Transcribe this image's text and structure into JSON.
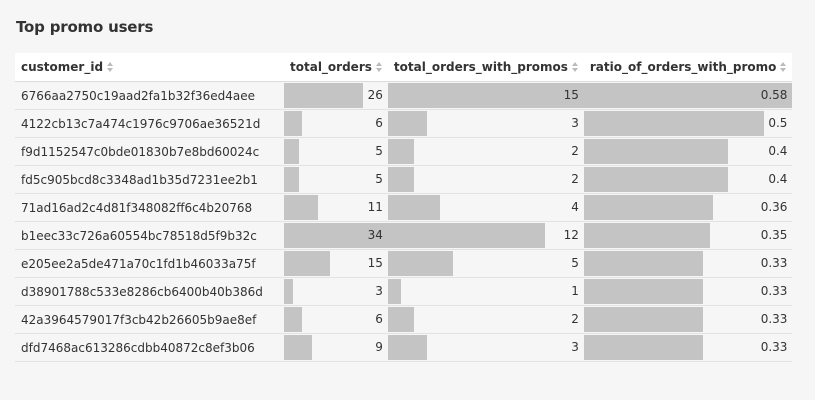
{
  "title": "Top promo users",
  "bar_color": "#c4c4c4",
  "columns": {
    "customer_id": "customer_id",
    "total_orders": "total_orders",
    "total_orders_with_promos": "total_orders_with_promos",
    "ratio_of_orders_with_promo": "ratio_of_orders_with_promo"
  },
  "rows": [
    {
      "customer_id": "6766aa2750c19aad2fa1b32f36ed4aee",
      "total_orders": 26,
      "total_orders_with_promos": 15,
      "ratio_of_orders_with_promo": "0.58"
    },
    {
      "customer_id": "4122cb13c7a474c1976c9706ae36521d",
      "total_orders": 6,
      "total_orders_with_promos": 3,
      "ratio_of_orders_with_promo": "0.5"
    },
    {
      "customer_id": "f9d1152547c0bde01830b7e8bd60024c",
      "total_orders": 5,
      "total_orders_with_promos": 2,
      "ratio_of_orders_with_promo": "0.4"
    },
    {
      "customer_id": "fd5c905bcd8c3348ad1b35d7231ee2b1",
      "total_orders": 5,
      "total_orders_with_promos": 2,
      "ratio_of_orders_with_promo": "0.4"
    },
    {
      "customer_id": "71ad16ad2c4d81f348082ff6c4b20768",
      "total_orders": 11,
      "total_orders_with_promos": 4,
      "ratio_of_orders_with_promo": "0.36"
    },
    {
      "customer_id": "b1eec33c726a60554bc78518d5f9b32c",
      "total_orders": 34,
      "total_orders_with_promos": 12,
      "ratio_of_orders_with_promo": "0.35"
    },
    {
      "customer_id": "e205ee2a5de471a70c1fd1b46033a75f",
      "total_orders": 15,
      "total_orders_with_promos": 5,
      "ratio_of_orders_with_promo": "0.33"
    },
    {
      "customer_id": "d38901788c533e8286cb6400b40b386d",
      "total_orders": 3,
      "total_orders_with_promos": 1,
      "ratio_of_orders_with_promo": "0.33"
    },
    {
      "customer_id": "42a3964579017f3cb42b26605b9ae8ef",
      "total_orders": 6,
      "total_orders_with_promos": 2,
      "ratio_of_orders_with_promo": "0.33"
    },
    {
      "customer_id": "dfd7468ac613286cdbb40872c8ef3b06",
      "total_orders": 9,
      "total_orders_with_promos": 3,
      "ratio_of_orders_with_promo": "0.33"
    }
  ]
}
